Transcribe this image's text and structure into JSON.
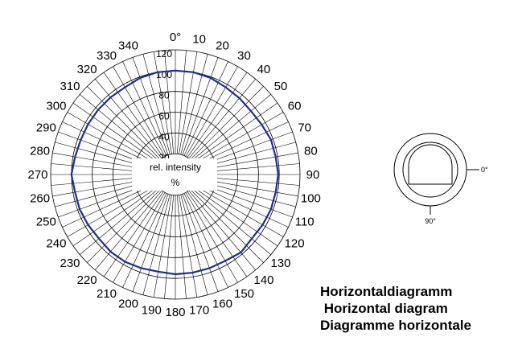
{
  "chart_data": {
    "type": "polar-line",
    "center_label_line1": "rel. intensity",
    "center_label_line2": "%",
    "radial_ticks": [
      20,
      40,
      60,
      80,
      100,
      120
    ],
    "rlim": [
      0,
      120
    ],
    "angle_ticks": [
      0,
      10,
      20,
      30,
      40,
      50,
      60,
      70,
      80,
      90,
      100,
      110,
      120,
      130,
      140,
      150,
      160,
      170,
      180,
      190,
      200,
      210,
      220,
      230,
      240,
      250,
      260,
      270,
      280,
      290,
      300,
      310,
      320,
      330,
      340
    ],
    "zero_label": "0°",
    "series": [
      {
        "color": "#1c2f8c",
        "angles": [
          0,
          10,
          20,
          30,
          40,
          50,
          60,
          70,
          80,
          90,
          100,
          110,
          120,
          130,
          140,
          150,
          160,
          170,
          180,
          190,
          200,
          210,
          220,
          230,
          240,
          250,
          260,
          270,
          280,
          290,
          300,
          310,
          320,
          330,
          340,
          350
        ],
        "values": [
          100,
          100,
          99,
          97,
          96,
          95,
          96,
          98,
          98,
          99,
          98,
          98,
          97,
          96,
          98,
          96,
          96,
          96,
          96,
          95,
          96,
          97,
          97,
          96,
          97,
          98,
          98,
          100,
          98,
          97,
          97,
          97,
          97,
          97,
          99,
          100
        ]
      }
    ]
  },
  "inset": {
    "label_0": "0°",
    "label_90": "90°"
  },
  "caption": {
    "line1": "Horizontaldiagramm",
    "line2": " Horizontal diagram",
    "line3": "Diagramme horizontale"
  }
}
